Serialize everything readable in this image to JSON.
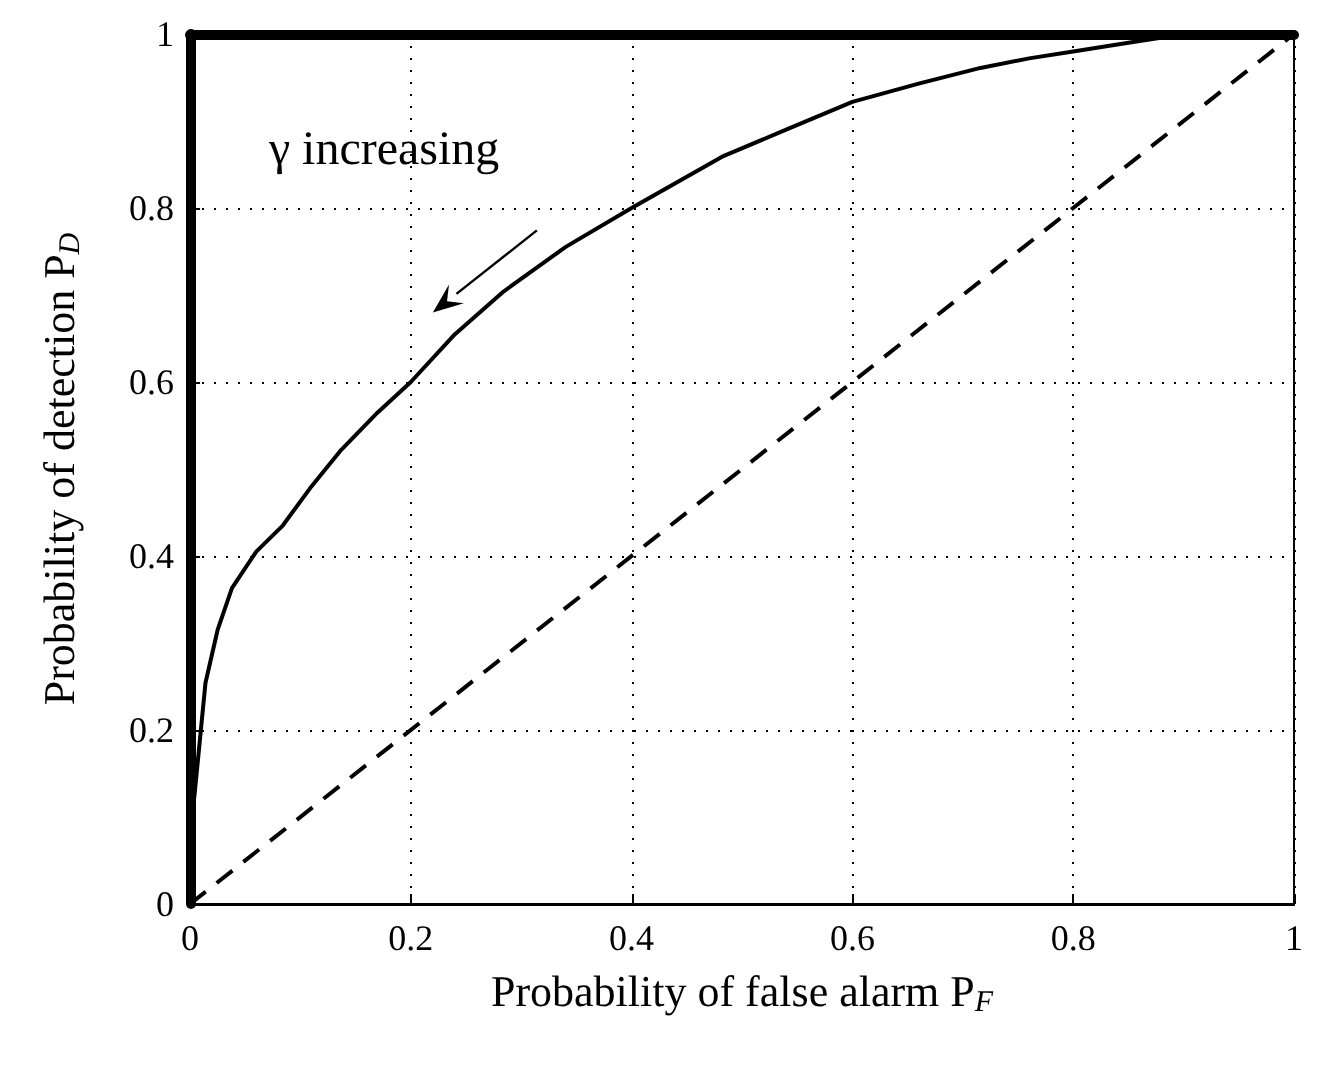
{
  "chart_data": {
    "type": "line",
    "xlabel": "Probability of false alarm P$_{F}$",
    "ylabel": "Probability of detection P$_{D}$",
    "xlim": [
      0,
      1
    ],
    "ylim": [
      0,
      1
    ],
    "xticks": [
      0,
      0.2,
      0.4,
      0.6,
      0.8,
      1
    ],
    "yticks": [
      0,
      0.2,
      0.4,
      0.6,
      0.8,
      1
    ],
    "grid": true,
    "marker": "none",
    "annotations": [
      "γ increasing"
    ],
    "series": [
      {
        "color": "#000000",
        "line_style": "solid",
        "x": [
          0,
          0.004,
          0.014,
          0.025,
          0.038,
          0.06,
          0.084,
          0.11,
          0.137,
          0.17,
          0.2,
          0.24,
          0.284,
          0.34,
          0.4,
          0.482,
          0.54,
          0.6,
          0.66,
          0.716,
          0.76,
          0.8,
          0.85,
          0.891,
          0.93,
          1
        ],
        "values": [
          0.08,
          0.124,
          0.254,
          0.315,
          0.363,
          0.405,
          0.435,
          0.48,
          0.522,
          0.565,
          0.6,
          0.655,
          0.704,
          0.755,
          0.8,
          0.859,
          0.89,
          0.922,
          0.943,
          0.961,
          0.972,
          0.98,
          0.99,
          0.998,
          1,
          1
        ]
      },
      {
        "color": "#000000",
        "line_style": "dashed",
        "x": [
          0,
          1
        ],
        "values": [
          0,
          1
        ]
      }
    ]
  }
}
